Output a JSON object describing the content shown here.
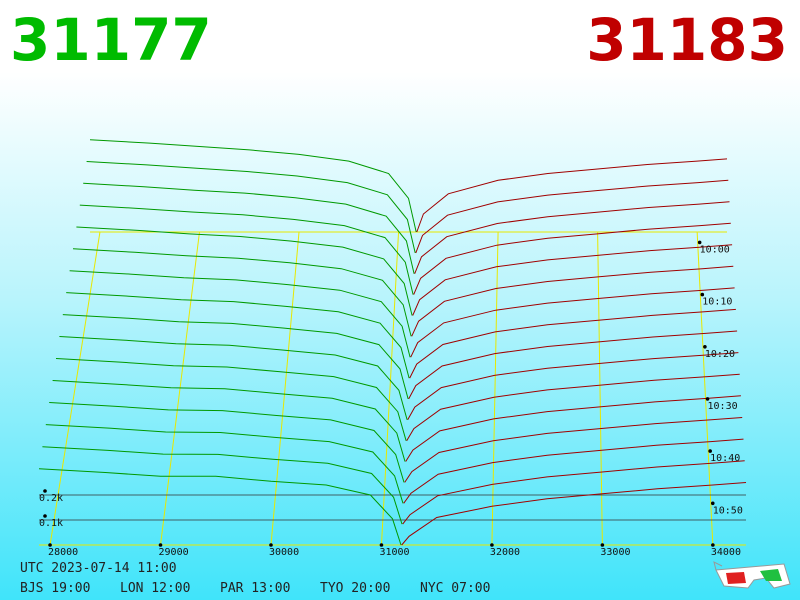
{
  "chart_data": {
    "type": "depth3d",
    "best_bid": "31177",
    "best_ask": "31183",
    "utc_label": "UTC 2023-07-14 11:00",
    "city_times": [
      "BJS 19:00",
      "LON 12:00",
      "PAR 13:00",
      "TYO 20:00",
      "NYC 07:00"
    ],
    "bid_prices": [
      27900,
      28500,
      29000,
      29500,
      30000,
      30500,
      30900,
      31100,
      31177
    ],
    "ask_prices": [
      31183,
      31250,
      31500,
      32000,
      32500,
      33000,
      33500,
      34000,
      34300
    ],
    "bid_color": "#009900",
    "ask_color": "#a00000",
    "grid_color": "#e8e800",
    "grid": true,
    "xlim": [
      27900,
      34300
    ],
    "xticks": [
      28000,
      29000,
      30000,
      31000,
      32000,
      33000,
      34000
    ],
    "tlim": [
      598,
      658
    ],
    "tticks": [
      {
        "value": 600,
        "label": "10:00"
      },
      {
        "value": 610,
        "label": "10:10"
      },
      {
        "value": 620,
        "label": "10:20"
      },
      {
        "value": 630,
        "label": "10:30"
      },
      {
        "value": 640,
        "label": "10:40"
      },
      {
        "value": 650,
        "label": "10:50"
      }
    ],
    "yticks": [
      {
        "value": 100,
        "label": "0.1k"
      },
      {
        "value": 200,
        "label": "0.2k"
      }
    ],
    "snapshots": [
      {
        "time": 598,
        "bids": [
          410,
          395,
          380,
          365,
          345,
          315,
          260,
          150,
          0
        ],
        "asks": [
          0,
          80,
          170,
          230,
          260,
          280,
          300,
          315,
          325
        ]
      },
      {
        "time": 602,
        "bids": [
          403,
          388,
          373,
          359,
          339,
          310,
          256,
          147,
          0
        ],
        "asks": [
          0,
          77,
          166,
          225,
          255,
          275,
          295,
          310,
          320
        ]
      },
      {
        "time": 606,
        "bids": [
          396,
          381,
          366,
          353,
          333,
          305,
          252,
          144,
          0
        ],
        "asks": [
          0,
          74,
          162,
          220,
          250,
          270,
          290,
          305,
          315
        ]
      },
      {
        "time": 610,
        "bids": [
          389,
          374,
          359,
          347,
          327,
          300,
          248,
          141,
          0
        ],
        "asks": [
          0,
          71,
          158,
          215,
          245,
          265,
          285,
          300,
          310
        ]
      },
      {
        "time": 614,
        "bids": [
          382,
          367,
          352,
          341,
          321,
          295,
          244,
          138,
          0
        ],
        "asks": [
          0,
          68,
          154,
          210,
          240,
          260,
          280,
          295,
          305
        ]
      },
      {
        "time": 618,
        "bids": [
          375,
          360,
          345,
          335,
          315,
          290,
          240,
          135,
          0
        ],
        "asks": [
          0,
          65,
          150,
          205,
          235,
          255,
          275,
          290,
          300
        ]
      },
      {
        "time": 622,
        "bids": [
          368,
          353,
          338,
          329,
          309,
          285,
          236,
          132,
          0
        ],
        "asks": [
          0,
          62,
          146,
          200,
          230,
          250,
          270,
          285,
          295
        ]
      },
      {
        "time": 626,
        "bids": [
          361,
          346,
          331,
          323,
          303,
          280,
          232,
          129,
          0
        ],
        "asks": [
          0,
          59,
          142,
          195,
          225,
          245,
          265,
          280,
          290
        ]
      },
      {
        "time": 630,
        "bids": [
          354,
          339,
          324,
          317,
          297,
          275,
          228,
          126,
          0
        ],
        "asks": [
          0,
          56,
          138,
          190,
          220,
          240,
          260,
          275,
          285
        ]
      },
      {
        "time": 634,
        "bids": [
          347,
          332,
          317,
          311,
          291,
          270,
          224,
          123,
          0
        ],
        "asks": [
          0,
          53,
          134,
          185,
          215,
          235,
          255,
          270,
          280
        ]
      },
      {
        "time": 638,
        "bids": [
          340,
          325,
          310,
          305,
          285,
          265,
          220,
          120,
          0
        ],
        "asks": [
          0,
          50,
          130,
          180,
          210,
          230,
          250,
          265,
          275
        ]
      },
      {
        "time": 642,
        "bids": [
          333,
          318,
          303,
          299,
          279,
          260,
          216,
          117,
          0
        ],
        "asks": [
          0,
          47,
          126,
          175,
          205,
          225,
          245,
          260,
          270
        ]
      },
      {
        "time": 646,
        "bids": [
          326,
          311,
          296,
          293,
          273,
          255,
          212,
          114,
          0
        ],
        "asks": [
          0,
          44,
          122,
          170,
          200,
          220,
          240,
          255,
          265
        ]
      },
      {
        "time": 650,
        "bids": [
          319,
          304,
          289,
          287,
          267,
          250,
          208,
          111,
          0
        ],
        "asks": [
          0,
          41,
          118,
          165,
          195,
          215,
          235,
          250,
          260
        ]
      },
      {
        "time": 654,
        "bids": [
          312,
          297,
          282,
          281,
          261,
          245,
          204,
          108,
          0
        ],
        "asks": [
          0,
          38,
          114,
          160,
          190,
          210,
          230,
          245,
          255
        ]
      },
      {
        "time": 658,
        "bids": [
          305,
          290,
          275,
          275,
          255,
          240,
          200,
          105,
          0
        ],
        "asks": [
          0,
          35,
          110,
          155,
          185,
          205,
          225,
          240,
          250
        ]
      }
    ]
  }
}
